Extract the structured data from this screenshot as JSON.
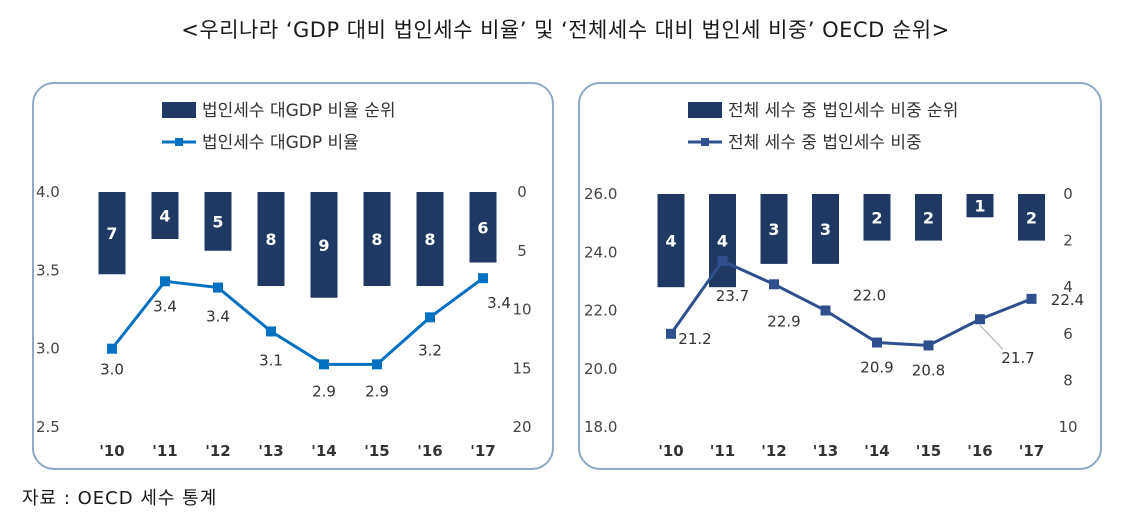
{
  "title": "<우리나라 ‘GDP 대비 법인세수 비율’ 및 ‘전체세수 대비 법인세 비중’ OECD 순위>",
  "source": "자료 : OECD 세수 통계",
  "colors": {
    "bar": "#1f3864",
    "line_left": "#0070c0",
    "line_right": "#2f4f8f",
    "panel_border": "#8ea9c8"
  },
  "chart_data": [
    {
      "type": "bar+line",
      "legend": [
        "법인세수 대GDP 비율 순위",
        "법인세수 대GDP 비율"
      ],
      "categories": [
        "'10",
        "'11",
        "'12",
        "'13",
        "'14",
        "'15",
        "'16",
        "'17"
      ],
      "series": [
        {
          "name": "법인세수 대GDP 비율 순위",
          "type": "bar",
          "axis": "right",
          "values": [
            7,
            4,
            5,
            8,
            9,
            8,
            8,
            6
          ]
        },
        {
          "name": "법인세수 대GDP 비율",
          "type": "line",
          "axis": "left",
          "values": [
            3.0,
            3.4,
            3.4,
            3.1,
            2.9,
            2.9,
            3.2,
            3.4
          ],
          "display": [
            "3.0",
            "3.4",
            "3.4",
            "3.1",
            "2.9",
            "2.9",
            "3.2",
            "3.4"
          ]
        }
      ],
      "y_left": {
        "min": 2.5,
        "max": 4.0,
        "ticks": [
          "4.0",
          "3.5",
          "3.0",
          "2.5"
        ],
        "tick_values": [
          4.0,
          3.5,
          3.0,
          2.5
        ]
      },
      "y_right": {
        "min": 0,
        "max": 20,
        "reversed": true,
        "ticks": [
          "0",
          "5",
          "10",
          "15",
          "20"
        ],
        "tick_values": [
          0,
          5,
          10,
          15,
          20
        ]
      },
      "line_points": [
        3.0,
        3.43,
        3.39,
        3.11,
        2.9,
        2.9,
        3.2,
        3.45
      ]
    },
    {
      "type": "bar+line",
      "legend": [
        "전체 세수 중 법인세수 비중 순위",
        "전체 세수 중 법인세수 비중"
      ],
      "categories": [
        "'10",
        "'11",
        "'12",
        "'13",
        "'14",
        "'15",
        "'16",
        "'17"
      ],
      "series": [
        {
          "name": "전체 세수 중 법인세수 비중 순위",
          "type": "bar",
          "axis": "right",
          "values": [
            4,
            4,
            3,
            3,
            2,
            2,
            1,
            2
          ]
        },
        {
          "name": "전체 세수 중 법인세수 비중",
          "type": "line",
          "axis": "left",
          "values": [
            21.2,
            23.7,
            22.9,
            22.0,
            20.9,
            20.8,
            21.7,
            22.4
          ],
          "display": [
            "21.2",
            "23.7",
            "22.9",
            "22.0",
            "20.9",
            "20.8",
            "21.7",
            "22.4"
          ]
        }
      ],
      "y_left": {
        "min": 18.0,
        "max": 26.0,
        "ticks": [
          "26.0",
          "24.0",
          "22.0",
          "20.0",
          "18.0"
        ],
        "tick_values": [
          26,
          24,
          22,
          20,
          18
        ]
      },
      "y_right": {
        "min": 0,
        "max": 10,
        "reversed": true,
        "ticks": [
          "0",
          "2",
          "4",
          "6",
          "8",
          "10"
        ],
        "tick_values": [
          0,
          2,
          4,
          6,
          8,
          10
        ]
      }
    }
  ]
}
